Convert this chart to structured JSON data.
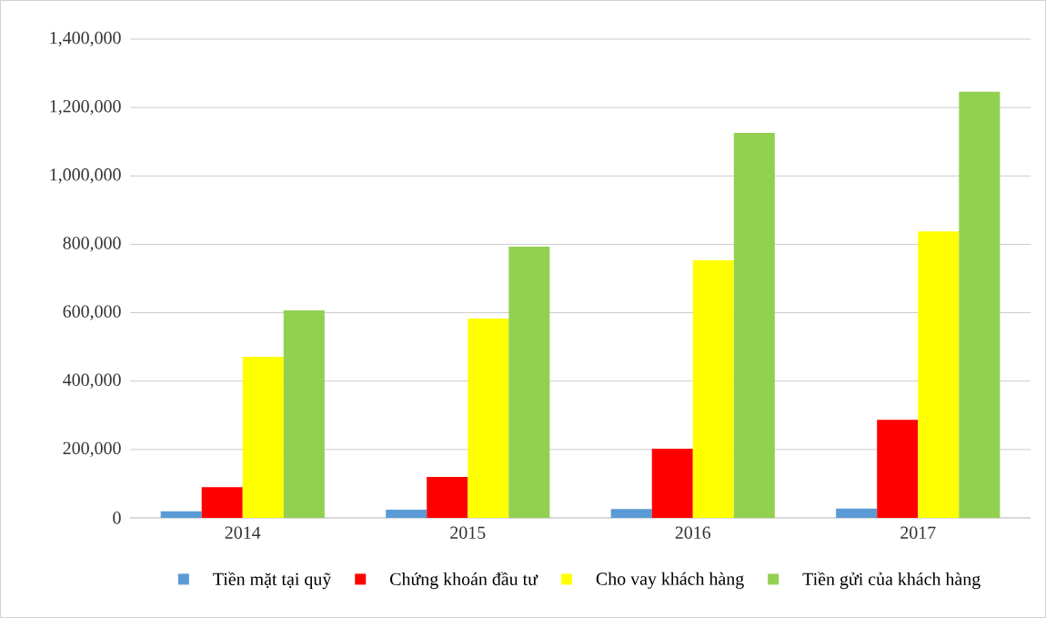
{
  "chart_data": {
    "type": "bar",
    "categories": [
      "2014",
      "2015",
      "2016",
      "2017"
    ],
    "series": [
      {
        "name": "Tiền mặt tại quỹ",
        "color": "#5b9bd5",
        "values": [
          19000,
          24000,
          26000,
          27000
        ]
      },
      {
        "name": "Chứng khoán đầu tư",
        "color": "#ff0000",
        "values": [
          90000,
          120000,
          202000,
          287000
        ]
      },
      {
        "name": "Cho vay khách hàng",
        "color": "#ffff00",
        "values": [
          471000,
          583000,
          753000,
          838000
        ]
      },
      {
        "name": "Tiền gửi của khách hàng",
        "color": "#92d050",
        "values": [
          607000,
          793000,
          1126000,
          1246000
        ]
      }
    ],
    "ylim": [
      0,
      1400000
    ],
    "yticks": [
      0,
      {
        "value": 200000,
        "label": "200,000"
      },
      {
        "value": 400000,
        "label": "400,000"
      },
      {
        "value": 600000,
        "label": "600,000"
      },
      {
        "value": 800000,
        "label": "800,000"
      },
      {
        "value": 1000000,
        "label": "1,000,000"
      },
      {
        "value": 1200000,
        "label": "1,200,000"
      },
      {
        "value": 1400000,
        "label": "1,400,000"
      }
    ],
    "grid": "y",
    "legend": "bottom"
  }
}
